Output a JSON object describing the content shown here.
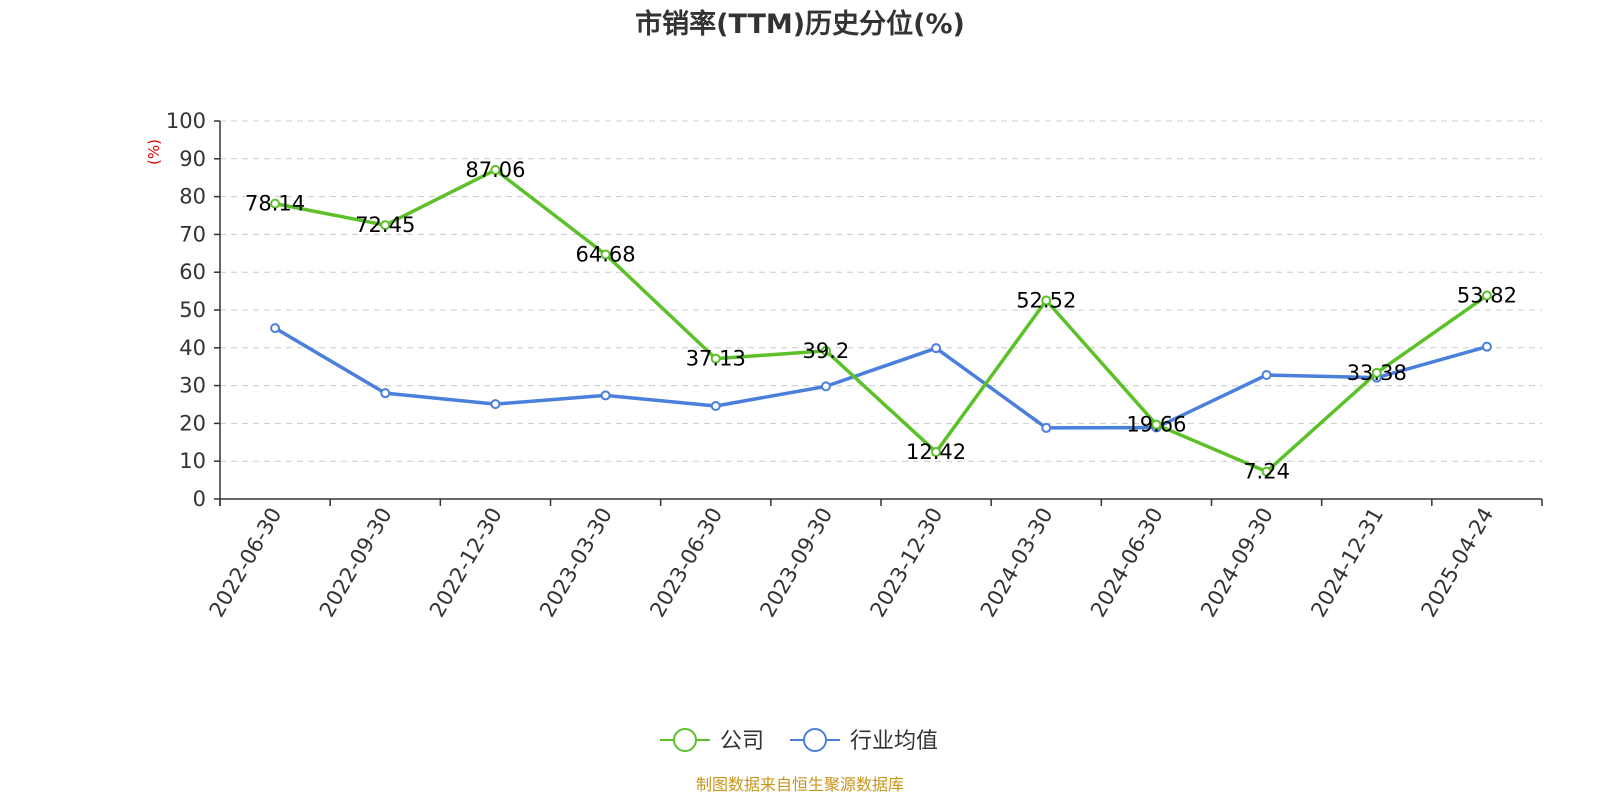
{
  "chart_data": {
    "type": "line",
    "title": "市销率(TTM)历史分位(%)",
    "ylabel": "(%)",
    "xlabel": "",
    "ylim": [
      0,
      100
    ],
    "yticks": [
      0,
      10,
      20,
      30,
      40,
      50,
      60,
      70,
      80,
      90,
      100
    ],
    "grid": true,
    "legend_position": "bottom",
    "categories": [
      "2022-06-30",
      "2022-09-30",
      "2022-12-30",
      "2023-03-30",
      "2023-06-30",
      "2023-09-30",
      "2023-12-30",
      "2024-03-30",
      "2024-06-30",
      "2024-09-30",
      "2024-12-31",
      "2025-04-24"
    ],
    "series": [
      {
        "name": "公司",
        "color": "#5cc128",
        "show_labels": true,
        "values": [
          78.14,
          72.45,
          87.06,
          64.68,
          37.13,
          39.2,
          12.42,
          52.52,
          19.66,
          7.24,
          33.38,
          53.82
        ],
        "labels": [
          "78.14",
          "72.45",
          "87.06",
          "64.68",
          "37.13",
          "39.2",
          "12.42",
          "52.52",
          "19.66",
          "7.24",
          "33.38",
          "53.82"
        ]
      },
      {
        "name": "行业均值",
        "color": "#4a7fdc",
        "show_labels": false,
        "values": [
          45.2,
          28.0,
          25.1,
          27.4,
          24.6,
          29.8,
          39.9,
          18.8,
          18.9,
          32.8,
          32.1,
          40.3
        ]
      }
    ]
  },
  "source": "制图数据来自恒生聚源数据库"
}
